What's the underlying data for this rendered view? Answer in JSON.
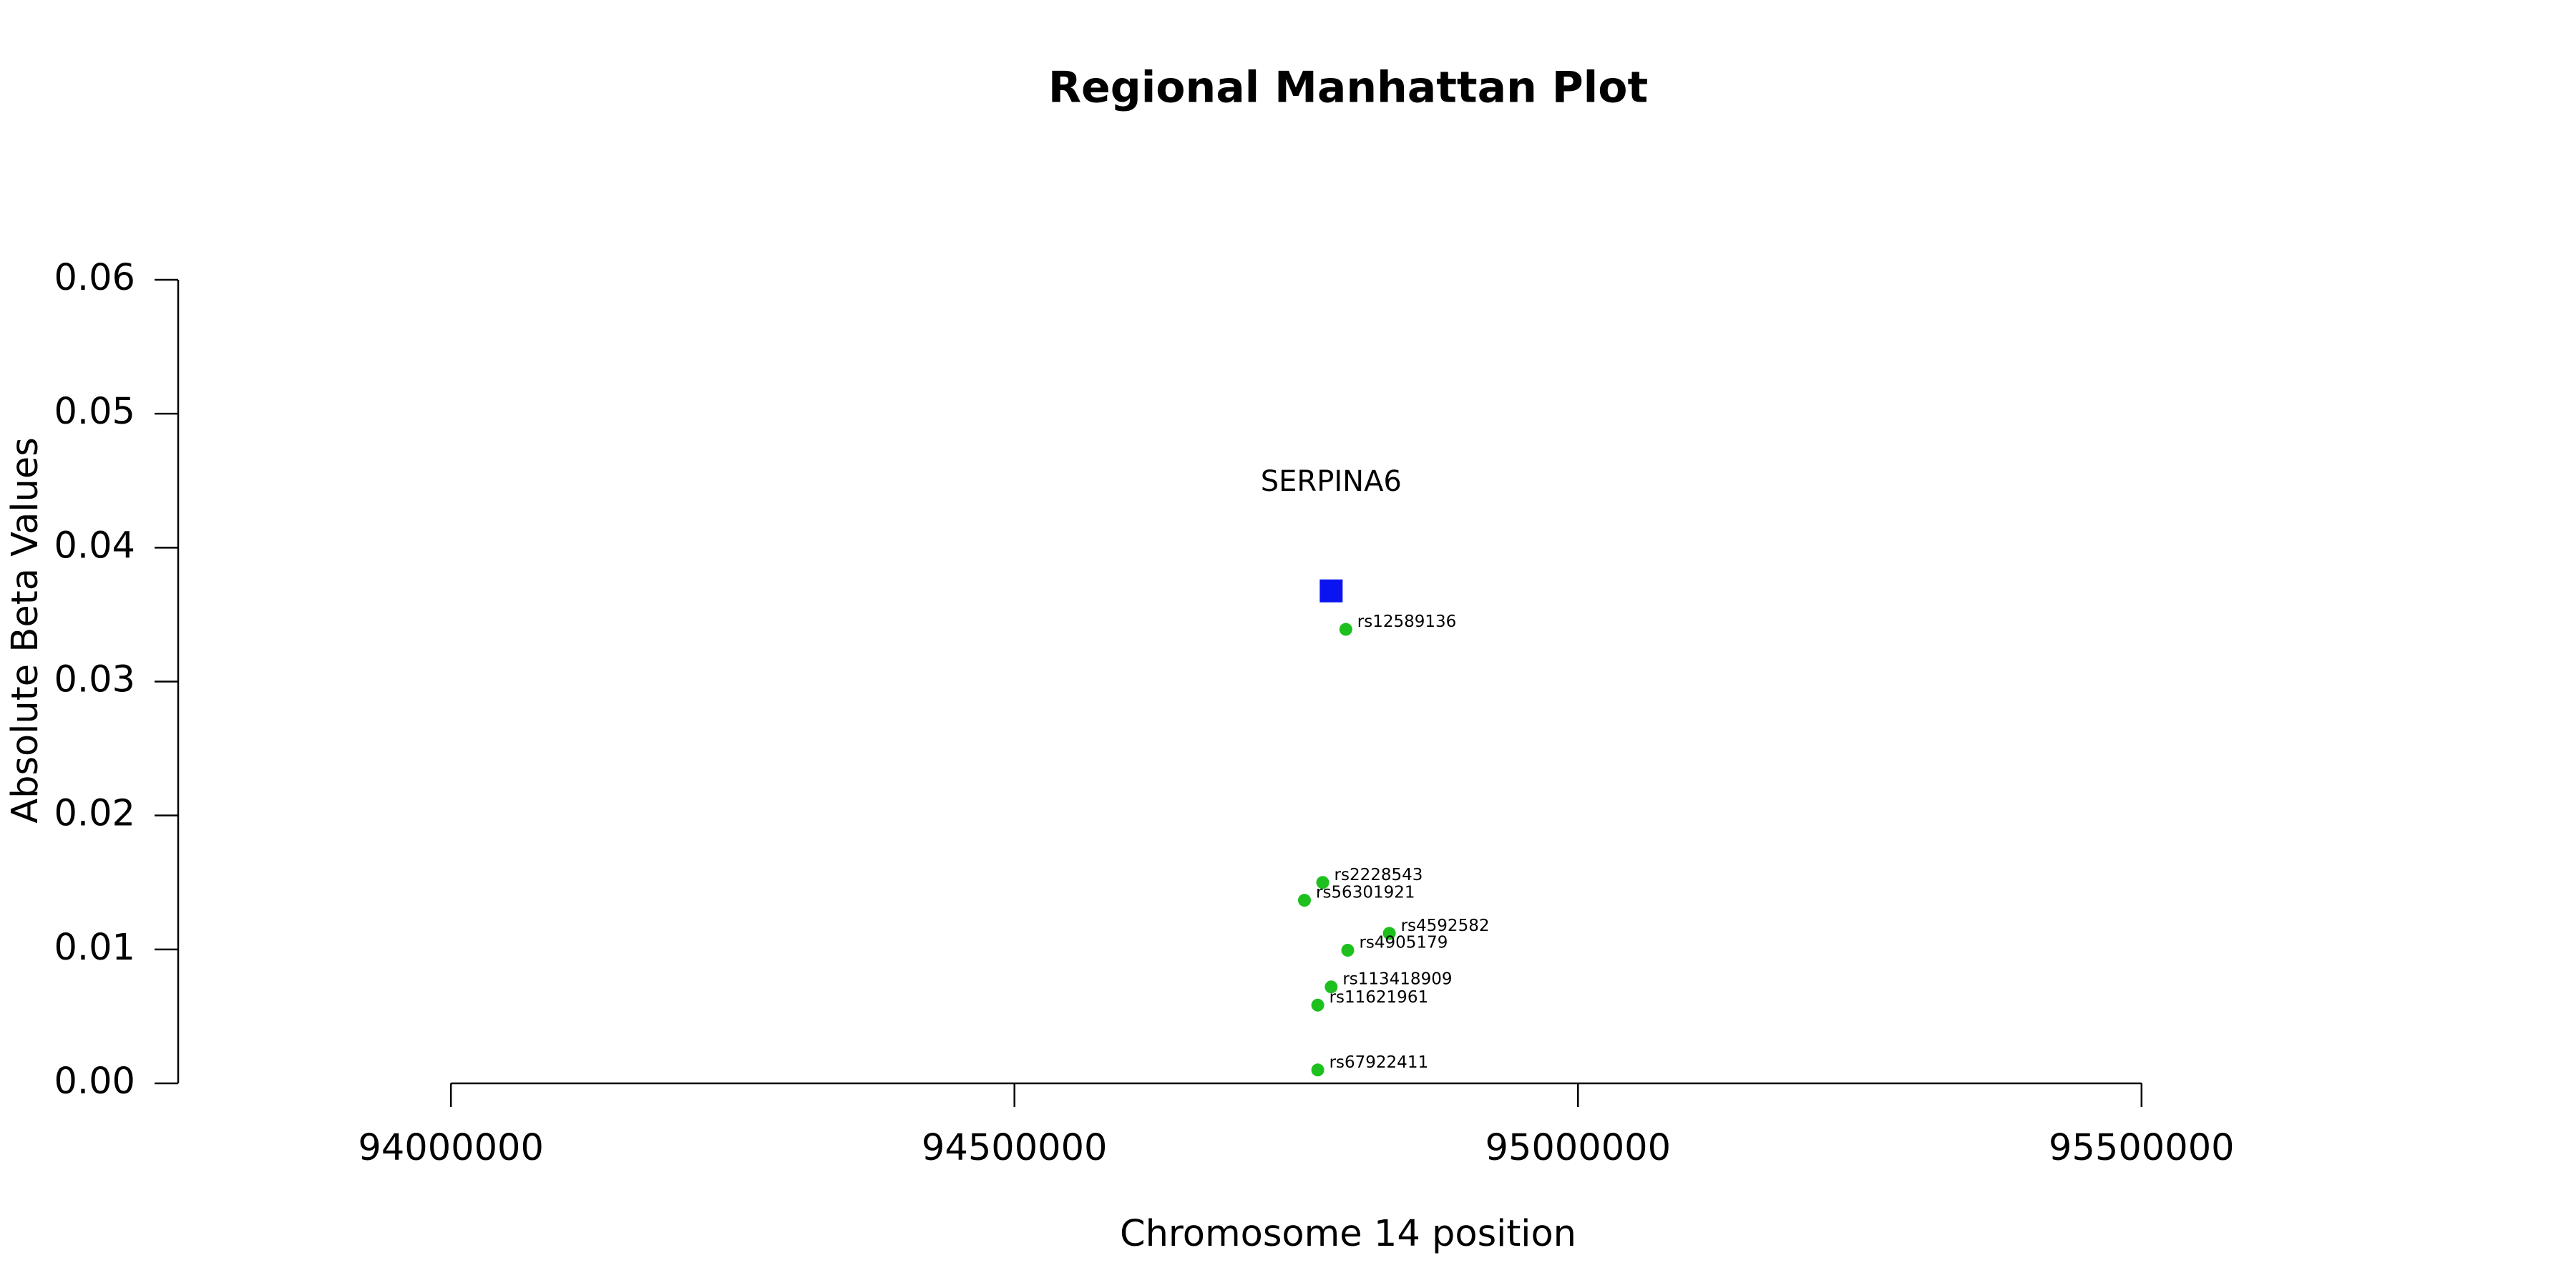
{
  "chart_data": {
    "type": "scatter",
    "title": "Regional Manhattan Plot",
    "x_label": "Chromosome 14 position",
    "y_label": "Absolute Beta Values",
    "xlim": [
      93758000,
      95742000
    ],
    "ylim": [
      0,
      0.06
    ],
    "xticks": [
      94000000,
      94500000,
      95000000,
      95500000
    ],
    "yticks": [
      {
        "value": 0,
        "label": "0.00"
      },
      {
        "value": 0.01,
        "label": "0.01"
      },
      {
        "value": 0.02,
        "label": "0.02"
      },
      {
        "value": 0.03,
        "label": "0.03"
      },
      {
        "value": 0.04,
        "label": "0.04"
      },
      {
        "value": 0.05,
        "label": "0.05"
      },
      {
        "value": 0.06,
        "label": "0.06"
      }
    ],
    "snps": {
      "color": "#1ec01e",
      "labels": [
        "rs12589136",
        "rs2228543",
        "rs56301921",
        "rs4592582",
        "rs4905179",
        "rs113418909",
        "rs11621961",
        "rs67922411"
      ],
      "x": [
        94794000,
        94773500,
        94757300,
        94832600,
        94795700,
        94781000,
        94769100,
        94769100
      ],
      "values": [
        0.0339,
        0.015,
        0.01367,
        0.0112,
        0.00994,
        0.0072,
        0.00584,
        0.001
      ]
    },
    "gene": {
      "label": "SERPINA6",
      "color": "#0a14f0",
      "marker": "square",
      "x": 94781000,
      "value": 0.03677
    }
  }
}
